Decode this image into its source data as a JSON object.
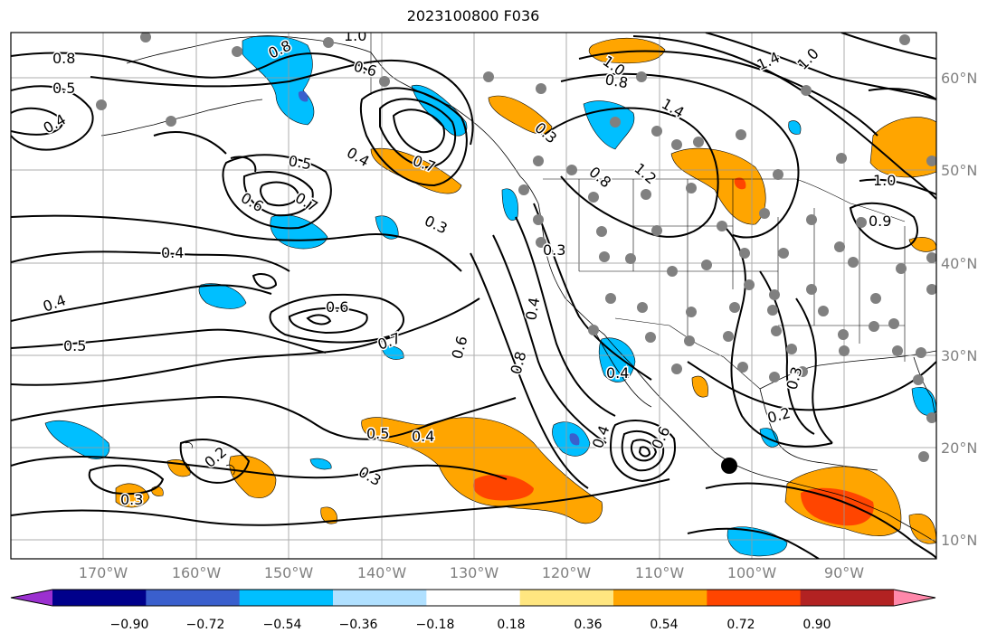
{
  "title": "2023100800 F036",
  "lat_labels": [
    "60°N",
    "50°N",
    "40°N",
    "30°N",
    "20°N",
    "10°N"
  ],
  "lon_labels": [
    "170°W",
    "160°W",
    "150°W",
    "140°W",
    "130°W",
    "120°W",
    "110°W",
    "100°W",
    "90°W"
  ],
  "colorbar": {
    "ticks": [
      "−0.90",
      "−0.72",
      "−0.54",
      "−0.36",
      "−0.18",
      "0.18",
      "0.36",
      "0.54",
      "0.72",
      "0.90"
    ],
    "colors": [
      "#9b30d0",
      "#00008b",
      "#3a5fcd",
      "#00bfff",
      "#b0e0ff",
      "#ffffff",
      "#ffe680",
      "#ffa500",
      "#ff4500",
      "#b22222",
      "#ff88aa"
    ]
  },
  "contour_labels": [
    "0.8",
    "0.5",
    "0.4",
    "1.0",
    "0.8",
    "0.6",
    "1.0",
    "0.8",
    "1.4",
    "1.0",
    "1.4",
    "1.2",
    "0.8",
    "0.5",
    "0.7",
    "0.6",
    "0.4",
    "0.7",
    "0.3",
    "0.4",
    "0.3",
    "0.6",
    "0.4",
    "0.7",
    "0.4",
    "0.5",
    "0.6",
    "0.8",
    "0.4",
    "0.2",
    "0.3",
    "0.2",
    "0.5",
    "0.4",
    "0.3",
    "0.3",
    "0.3",
    "0.6",
    "0.4",
    "0.9",
    "1.0"
  ],
  "shading_colors": {
    "orange": "#ffa500",
    "red": "#ff4500",
    "cyan": "#00bfff",
    "blue": "#3a5fcd"
  }
}
